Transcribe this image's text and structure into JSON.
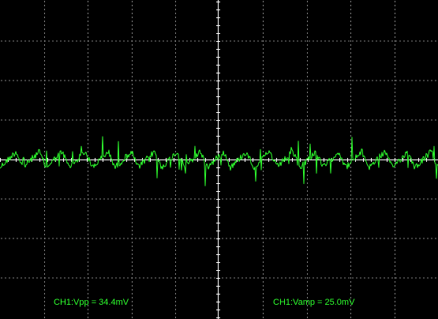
{
  "measurements": {
    "vpp": "CH1:Vpp = 34.4mV",
    "vamp": "CH1:Vamp = 25.0mV"
  },
  "colors": {
    "background": "#000000",
    "graticule": "#ffffff",
    "trace": "#2eff2e",
    "measurement_text": "#2eff2e"
  },
  "chart_data": {
    "type": "line",
    "title": "",
    "xlabel": "",
    "ylabel": "",
    "grid": true,
    "divisions": {
      "horizontal": 10,
      "vertical": 8
    },
    "series": [
      {
        "channel": "CH1",
        "shape": "noisy periodic ripple centred on the middle graticule line",
        "cycles_on_screen": 19,
        "vpp_mV": 34.4,
        "vamp_mV": 25.0
      }
    ]
  }
}
